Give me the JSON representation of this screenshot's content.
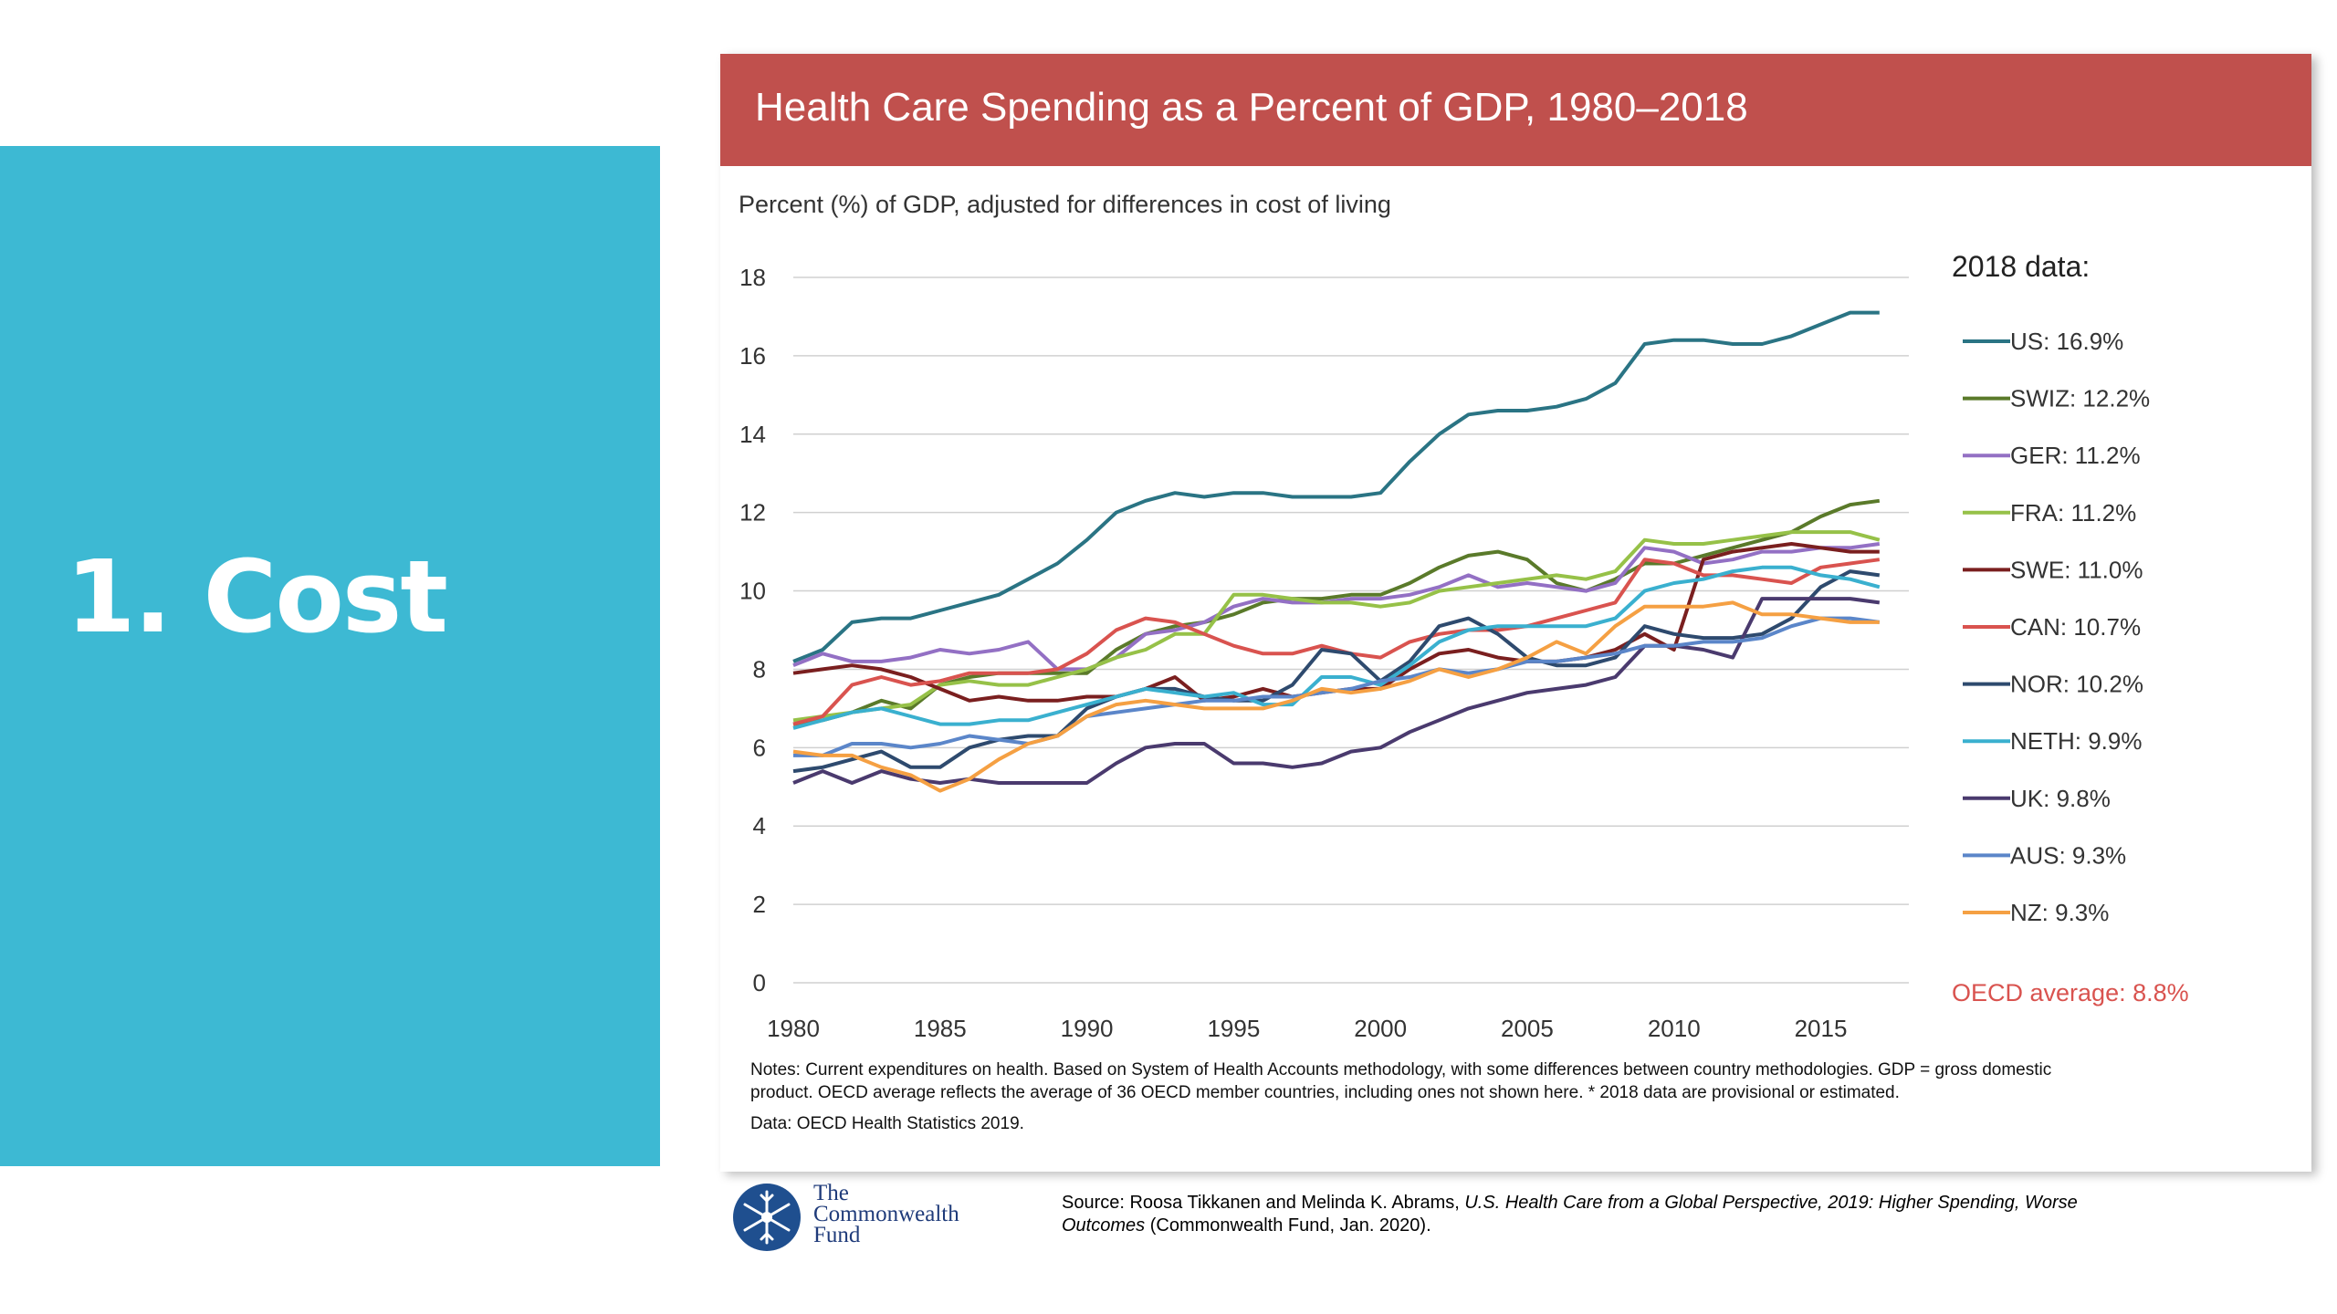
{
  "slide": {
    "title": "1. Cost"
  },
  "chart_title": "Health Care Spending as a Percent of GDP, 1980–2018",
  "notes": [
    "Notes: Current expenditures on health. Based on System of Health Accounts methodology, with some differences between country methodologies. GDP = gross domestic",
    "product. OECD average reflects the average of 36 OECD member countries, including ones not shown here. * 2018 data are provisional or estimated.",
    "Data: OECD Health Statistics 2019."
  ],
  "source": {
    "prefix": "Source: Roosa Tikkanen and Melinda K. Abrams, ",
    "title_italic": "U.S. Health Care from a Global Perspective, 2019: Higher Spending, Worse",
    "title_italic_2": "Outcomes",
    "suffix": " (Commonwealth Fund, Jan. 2020)."
  },
  "logo": {
    "line1": "The",
    "line2": "Commonwealth",
    "line3": "Fund",
    "icon": "snowflake-icon"
  },
  "chart_data": {
    "type": "line",
    "subtitle": "Percent (%) of GDP, adjusted for differences in cost of living",
    "legend_title": "2018 data:",
    "legend_placement": "right",
    "grid": true,
    "xlim": [
      1980,
      2018
    ],
    "ylim": [
      0,
      18
    ],
    "x_ticks": [
      1980,
      1985,
      1990,
      1995,
      2000,
      2005,
      2010,
      2015
    ],
    "y_ticks": [
      0,
      2,
      4,
      6,
      8,
      10,
      12,
      14,
      16,
      18
    ],
    "x": [
      1980,
      1981,
      1982,
      1983,
      1984,
      1985,
      1986,
      1987,
      1988,
      1989,
      1990,
      1991,
      1992,
      1993,
      1994,
      1995,
      1996,
      1997,
      1998,
      1999,
      2000,
      2001,
      2002,
      2003,
      2004,
      2005,
      2006,
      2007,
      2008,
      2009,
      2010,
      2011,
      2012,
      2013,
      2014,
      2015,
      2016,
      2017
    ],
    "series": [
      {
        "name": "US",
        "label": "US: 16.9%",
        "color": "#2a7484",
        "values": [
          8.2,
          8.5,
          9.2,
          9.3,
          9.3,
          9.5,
          9.7,
          9.9,
          10.3,
          10.7,
          11.3,
          12.0,
          12.3,
          12.5,
          12.4,
          12.5,
          12.5,
          12.4,
          12.4,
          12.4,
          12.5,
          13.3,
          14.0,
          14.5,
          14.6,
          14.6,
          14.7,
          14.9,
          15.3,
          16.3,
          16.4,
          16.4,
          16.3,
          16.3,
          16.5,
          16.8,
          17.1,
          17.1
        ]
      },
      {
        "name": "SWIZ",
        "label": "SWIZ: 12.2%",
        "color": "#5a7a2a",
        "values": [
          6.6,
          6.7,
          6.9,
          7.2,
          7.0,
          7.6,
          7.8,
          7.9,
          7.9,
          7.9,
          7.9,
          8.5,
          8.9,
          9.1,
          9.2,
          9.4,
          9.7,
          9.8,
          9.8,
          9.9,
          9.9,
          10.2,
          10.6,
          10.9,
          11.0,
          10.8,
          10.2,
          10.0,
          10.3,
          10.7,
          10.7,
          10.9,
          11.1,
          11.3,
          11.5,
          11.9,
          12.2,
          12.3
        ]
      },
      {
        "name": "GER",
        "label": "GER: 11.2%",
        "color": "#9370c4",
        "values": [
          8.1,
          8.4,
          8.2,
          8.2,
          8.3,
          8.5,
          8.4,
          8.5,
          8.7,
          8.0,
          8.0,
          8.3,
          8.9,
          9.0,
          9.2,
          9.6,
          9.8,
          9.7,
          9.7,
          9.8,
          9.8,
          9.9,
          10.1,
          10.4,
          10.1,
          10.2,
          10.1,
          10.0,
          10.2,
          11.1,
          11.0,
          10.7,
          10.8,
          11.0,
          11.0,
          11.1,
          11.1,
          11.2
        ]
      },
      {
        "name": "FRA",
        "label": "FRA: 11.2%",
        "color": "#96c148",
        "values": [
          6.7,
          6.8,
          6.9,
          7.0,
          7.1,
          7.6,
          7.7,
          7.6,
          7.6,
          7.8,
          8.0,
          8.3,
          8.5,
          8.9,
          8.9,
          9.9,
          9.9,
          9.8,
          9.7,
          9.7,
          9.6,
          9.7,
          10.0,
          10.1,
          10.2,
          10.3,
          10.4,
          10.3,
          10.5,
          11.3,
          11.2,
          11.2,
          11.3,
          11.4,
          11.5,
          11.5,
          11.5,
          11.3
        ]
      },
      {
        "name": "SWE",
        "label": "SWE: 11.0%",
        "color": "#7a1f1f",
        "values": [
          7.9,
          8.0,
          8.1,
          8.0,
          7.8,
          7.5,
          7.2,
          7.3,
          7.2,
          7.2,
          7.3,
          7.3,
          7.5,
          7.8,
          7.2,
          7.3,
          7.5,
          7.3,
          7.4,
          7.5,
          7.5,
          8.0,
          8.4,
          8.5,
          8.3,
          8.2,
          8.2,
          8.3,
          8.5,
          8.9,
          8.5,
          10.8,
          11.0,
          11.1,
          11.2,
          11.1,
          11.0,
          11.0
        ]
      },
      {
        "name": "CAN",
        "label": "CAN: 10.7%",
        "color": "#d9534f",
        "values": [
          6.6,
          6.8,
          7.6,
          7.8,
          7.6,
          7.7,
          7.9,
          7.9,
          7.9,
          8.0,
          8.4,
          9.0,
          9.3,
          9.2,
          8.9,
          8.6,
          8.4,
          8.4,
          8.6,
          8.4,
          8.3,
          8.7,
          8.9,
          9.0,
          9.0,
          9.1,
          9.3,
          9.5,
          9.7,
          10.8,
          10.7,
          10.4,
          10.4,
          10.3,
          10.2,
          10.6,
          10.7,
          10.8
        ]
      },
      {
        "name": "NOR",
        "label": "NOR: 10.2%",
        "color": "#2e4a6e",
        "values": [
          5.4,
          5.5,
          5.7,
          5.9,
          5.5,
          5.5,
          6.0,
          6.2,
          6.3,
          6.3,
          7.0,
          7.3,
          7.5,
          7.5,
          7.3,
          7.2,
          7.2,
          7.6,
          8.5,
          8.4,
          7.7,
          8.2,
          9.1,
          9.3,
          8.9,
          8.3,
          8.1,
          8.1,
          8.3,
          9.1,
          8.9,
          8.8,
          8.8,
          8.9,
          9.3,
          10.1,
          10.5,
          10.4
        ]
      },
      {
        "name": "NETH",
        "label": "NETH: 9.9%",
        "color": "#3ab0cf",
        "values": [
          6.5,
          6.7,
          6.9,
          7.0,
          6.8,
          6.6,
          6.6,
          6.7,
          6.7,
          6.9,
          7.1,
          7.3,
          7.5,
          7.4,
          7.3,
          7.4,
          7.1,
          7.1,
          7.8,
          7.8,
          7.6,
          8.1,
          8.7,
          9.0,
          9.1,
          9.1,
          9.1,
          9.1,
          9.3,
          10.0,
          10.2,
          10.3,
          10.5,
          10.6,
          10.6,
          10.4,
          10.3,
          10.1
        ]
      },
      {
        "name": "UK",
        "label": "UK: 9.8%",
        "color": "#4a3a6e",
        "values": [
          5.1,
          5.4,
          5.1,
          5.4,
          5.2,
          5.1,
          5.2,
          5.1,
          5.1,
          5.1,
          5.1,
          5.6,
          6.0,
          6.1,
          6.1,
          5.6,
          5.6,
          5.5,
          5.6,
          5.9,
          6.0,
          6.4,
          6.7,
          7.0,
          7.2,
          7.4,
          7.5,
          7.6,
          7.8,
          8.6,
          8.6,
          8.5,
          8.3,
          9.8,
          9.8,
          9.8,
          9.8,
          9.7
        ]
      },
      {
        "name": "AUS",
        "label": "AUS: 9.3%",
        "color": "#5b86c9",
        "values": [
          5.8,
          5.8,
          6.1,
          6.1,
          6.0,
          6.1,
          6.3,
          6.2,
          6.1,
          6.3,
          6.8,
          6.9,
          7.0,
          7.1,
          7.2,
          7.2,
          7.3,
          7.3,
          7.4,
          7.5,
          7.7,
          7.8,
          8.0,
          7.9,
          8.0,
          8.2,
          8.2,
          8.3,
          8.4,
          8.6,
          8.6,
          8.7,
          8.7,
          8.8,
          9.1,
          9.3,
          9.3,
          9.2
        ]
      },
      {
        "name": "NZ",
        "label": "NZ: 9.3%",
        "color": "#f5a043",
        "values": [
          5.9,
          5.8,
          5.8,
          5.5,
          5.3,
          4.9,
          5.2,
          5.7,
          6.1,
          6.3,
          6.8,
          7.1,
          7.2,
          7.1,
          7.0,
          7.0,
          7.0,
          7.2,
          7.5,
          7.4,
          7.5,
          7.7,
          8.0,
          7.8,
          8.0,
          8.3,
          8.7,
          8.4,
          9.1,
          9.6,
          9.6,
          9.6,
          9.7,
          9.4,
          9.4,
          9.3,
          9.2,
          9.2
        ]
      }
    ],
    "oecd_label": "OECD average: 8.8%",
    "oecd_color": "#d9534f"
  }
}
